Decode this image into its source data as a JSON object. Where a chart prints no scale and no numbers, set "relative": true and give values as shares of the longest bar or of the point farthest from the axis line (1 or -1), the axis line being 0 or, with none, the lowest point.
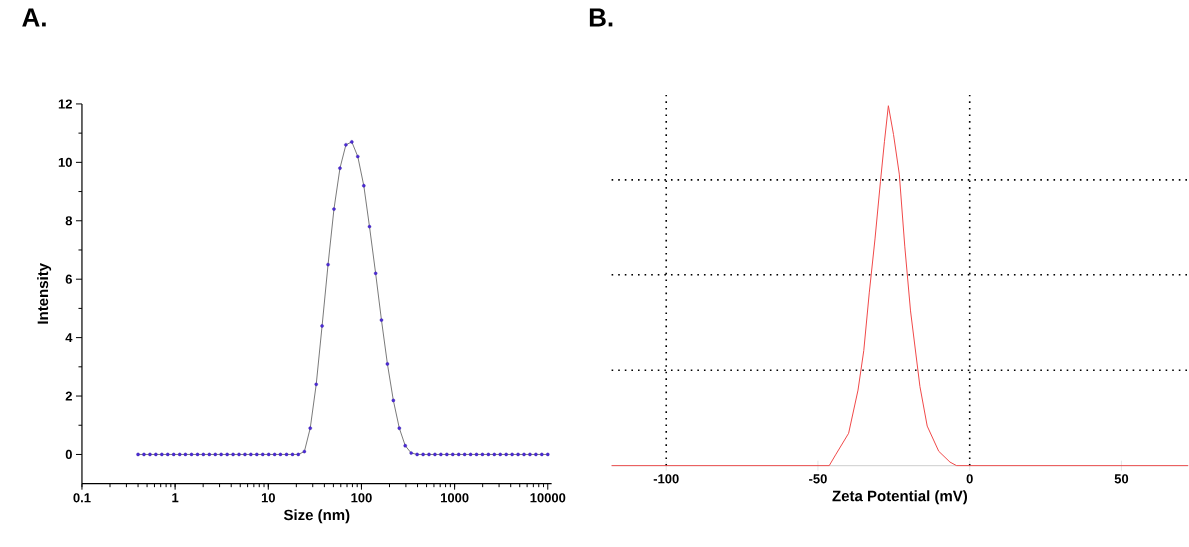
{
  "chart_data": [
    {
      "type": "line",
      "title": "A.",
      "xlabel": "Size (nm)",
      "ylabel": "Intensity",
      "log": "x",
      "marker": "circle",
      "x": [
        0.4,
        0.463,
        0.537,
        0.621,
        0.72,
        0.833,
        0.965,
        1.12,
        1.29,
        1.5,
        1.74,
        2.01,
        2.33,
        2.7,
        3.12,
        3.62,
        4.19,
        4.85,
        5.62,
        6.5,
        7.53,
        8.72,
        10.1,
        11.7,
        13.5,
        15.7,
        18.2,
        21.0,
        24.4,
        28.2,
        32.7,
        37.8,
        43.8,
        50.7,
        58.8,
        68.1,
        78.8,
        91.3,
        106,
        122,
        142,
        164,
        190,
        220,
        255,
        295,
        342,
        396,
        459,
        531,
        615,
        712,
        825,
        955,
        1106,
        1281,
        1484,
        1718,
        1990,
        2304,
        2669,
        3090,
        3579,
        4144,
        4799,
        5558,
        6436,
        7454,
        8630,
        10000
      ],
      "series": [
        {
          "color": "#4b2bd6",
          "values": [
            0,
            0,
            0,
            0,
            0,
            0,
            0,
            0,
            0,
            0,
            0,
            0,
            0,
            0,
            0,
            0,
            0,
            0,
            0,
            0,
            0,
            0,
            0,
            0,
            0,
            0,
            0,
            0,
            0.1,
            0.9,
            2.4,
            4.4,
            6.5,
            8.4,
            9.8,
            10.6,
            10.7,
            10.2,
            9.2,
            7.8,
            6.2,
            4.6,
            3.1,
            1.85,
            0.9,
            0.3,
            0.05,
            0,
            0,
            0,
            0,
            0,
            0,
            0,
            0,
            0,
            0,
            0,
            0,
            0,
            0,
            0,
            0,
            0,
            0,
            0,
            0,
            0,
            0,
            0
          ]
        }
      ],
      "xlim": [
        0.1,
        11000
      ],
      "ylim": [
        -1,
        12
      ],
      "xticks": [
        0.1,
        1,
        10,
        100,
        1000,
        10000
      ],
      "yticks": [
        0,
        2,
        4,
        6,
        8,
        10,
        12
      ]
    },
    {
      "type": "line",
      "title": "B.",
      "xlabel": "Zeta Potential (mV)",
      "relative": true,
      "grid": false,
      "x": [
        -118,
        -46.3,
        -44.2,
        -39.9,
        -36.8,
        -34.9,
        -33.1,
        -31.2,
        -29.4,
        -28.1,
        -26.8,
        -25.1,
        -23.2,
        -21.4,
        -19.5,
        -16.4,
        -14.0,
        -10.2,
        -6.5,
        -4.3,
        72
      ],
      "series": [
        {
          "color": "#f04848",
          "values": [
            0,
            0,
            0.03,
            0.09,
            0.21,
            0.32,
            0.48,
            0.63,
            0.79,
            0.9,
            1,
            0.92,
            0.81,
            0.61,
            0.43,
            0.22,
            0.11,
            0.04,
            0.01,
            0,
            0
          ]
        }
      ],
      "xlim": [
        -118,
        72
      ],
      "xticks": [
        -100,
        -50,
        0,
        50
      ],
      "ref_lines": [
        {
          "axis": "x",
          "value": -100,
          "color": "#000000",
          "line_style": "dotted"
        },
        {
          "axis": "x",
          "value": 0,
          "color": "#000000",
          "line_style": "dotted"
        },
        {
          "axis": "y",
          "value": 0.265,
          "color": "#000000",
          "line_style": "dotted"
        },
        {
          "axis": "y",
          "value": 0.53,
          "color": "#000000",
          "line_style": "dotted"
        },
        {
          "axis": "y",
          "value": 0.794,
          "color": "#000000",
          "line_style": "dotted"
        }
      ]
    }
  ]
}
